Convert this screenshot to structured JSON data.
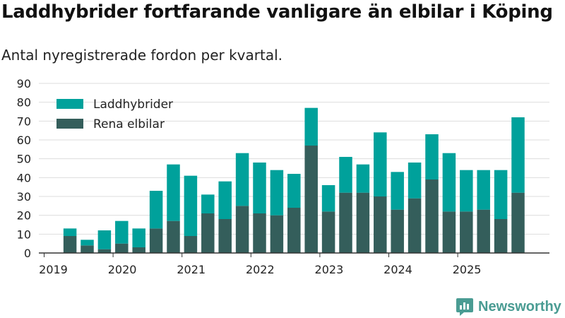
{
  "title": "Laddhybrider fortfarande vanligare än elbilar i Köping",
  "subtitle": "Antal nyregistrerade fordon per kvartal.",
  "brand": "Newsworthy",
  "colors": {
    "hybrid": "#00a19b",
    "electric": "#345e5b",
    "grid": "#dddddd",
    "axis": "#333333",
    "brand": "#4a9c93"
  },
  "chart_data": {
    "type": "bar",
    "stacked": true,
    "categories": [
      "2019 Q1",
      "2019 Q2",
      "2019 Q3",
      "2019 Q4",
      "2020 Q1",
      "2020 Q2",
      "2020 Q3",
      "2020 Q4",
      "2021 Q1",
      "2021 Q2",
      "2021 Q3",
      "2021 Q4",
      "2022 Q1",
      "2022 Q2",
      "2022 Q3",
      "2022 Q4",
      "2023 Q1",
      "2023 Q2",
      "2023 Q3",
      "2023 Q4",
      "2024 Q1",
      "2024 Q2",
      "2024 Q3",
      "2024 Q4",
      "2025 Q1",
      "2025 Q2",
      "2025 Q3",
      "2025 Q4"
    ],
    "series": [
      {
        "name": "Rena elbilar",
        "values": [
          0,
          9,
          4,
          2,
          5,
          3,
          13,
          17,
          9,
          21,
          18,
          25,
          21,
          20,
          24,
          57,
          22,
          32,
          32,
          30,
          23,
          29,
          39,
          22,
          22,
          23,
          18,
          32
        ]
      },
      {
        "name": "Laddhybrider",
        "values": [
          0,
          4,
          3,
          10,
          12,
          10,
          20,
          30,
          32,
          10,
          20,
          28,
          27,
          24,
          18,
          20,
          14,
          19,
          15,
          34,
          20,
          19,
          24,
          31,
          22,
          21,
          26,
          40
        ]
      }
    ],
    "x_tick_labels": [
      "2019",
      "2020",
      "2021",
      "2022",
      "2023",
      "2024",
      "2025"
    ],
    "y_ticks": [
      0,
      10,
      20,
      30,
      40,
      50,
      60,
      70,
      80,
      90
    ],
    "ylim": [
      0,
      90
    ],
    "legend": [
      "Laddhybrider",
      "Rena elbilar"
    ],
    "legend_position": "top-left",
    "grid": true
  }
}
